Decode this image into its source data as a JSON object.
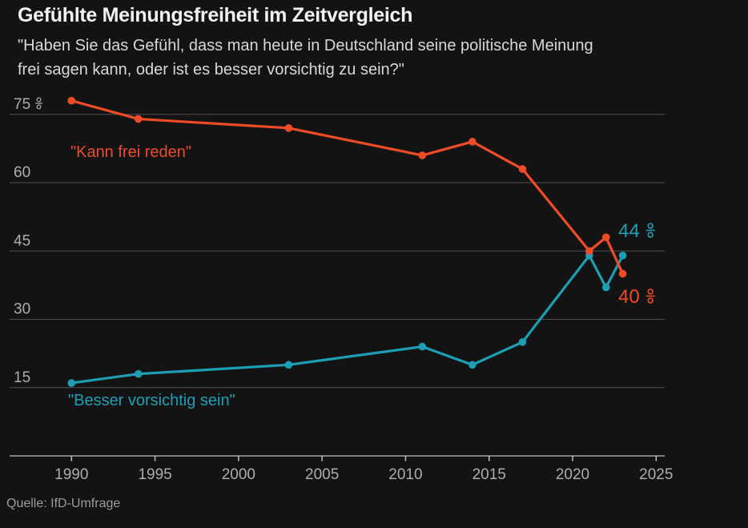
{
  "header": {
    "title": "Gefühlte Meinungsfreiheit im Zeitvergleich",
    "subtitle_lines": [
      "\"Haben Sie das Gefühl, dass man heute in Deutschland seine politische Meinung",
      "frei sagen kann, oder ist es besser vorsichtig zu sein?\""
    ]
  },
  "source": "Quelle: IfD-Umfrage",
  "colors": {
    "background": "#131313",
    "red": "#ef4b27",
    "teal": "#1c9fb5",
    "gridline": "#4f4f4f",
    "axis_line": "#c2c2c2",
    "tick_label": "#adadad",
    "title": "#f2f2f2",
    "subtitle": "#d8d8d8",
    "source": "#9c9c9c"
  },
  "chart_data": {
    "type": "line",
    "title": "Gefühlte Meinungsfreiheit im Zeitvergleich",
    "subtitle": "\"Haben Sie das Gefühl, dass man heute in Deutschland seine politische Meinung frei sagen kann, oder ist es besser vorsichtig zu sein?\"",
    "x": [
      1990,
      1994,
      2003,
      2011,
      2014,
      2017,
      2021,
      2022,
      2023
    ],
    "series": [
      {
        "name": "\"Kann frei reden\"",
        "color_key": "red",
        "values": [
          78,
          74,
          72,
          66,
          69,
          63,
          45,
          48,
          40
        ],
        "end_label": {
          "value": "40",
          "unit": "%"
        }
      },
      {
        "name": "\"Besser vorsichtig sein\"",
        "color_key": "teal",
        "values": [
          16,
          18,
          20,
          24,
          20,
          25,
          44,
          37,
          44
        ],
        "end_label": {
          "value": "44",
          "unit": "%"
        }
      }
    ],
    "xticks": [
      1990,
      1995,
      2000,
      2005,
      2010,
      2015,
      2020,
      2025
    ],
    "yticks": [
      {
        "value": 15,
        "label": "15"
      },
      {
        "value": 30,
        "label": "30"
      },
      {
        "value": 45,
        "label": "45"
      },
      {
        "value": 60,
        "label": "60"
      },
      {
        "value": 75,
        "label": "75",
        "unit": "%"
      }
    ],
    "xlim": [
      1986.3,
      2025.5
    ],
    "ylim": [
      0,
      80
    ],
    "grid": "horizontal",
    "legend_position": "inline",
    "source": "Quelle: IfD-Umfrage"
  }
}
